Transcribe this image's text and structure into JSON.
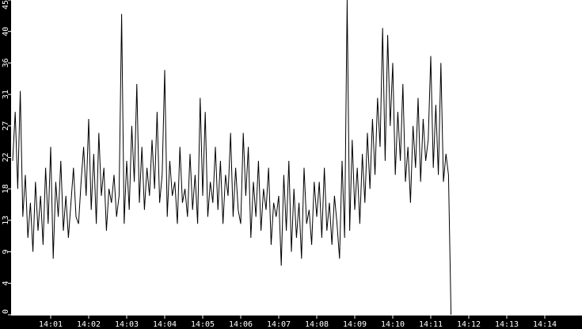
{
  "chart_data": {
    "type": "line",
    "title": "",
    "xlabel": "",
    "ylabel": "",
    "ylim": [
      0,
      45
    ],
    "xlim": [
      "14:00",
      "14:15"
    ],
    "y_ticks": [
      "0",
      "4",
      "9",
      "13",
      "18",
      "22",
      "27",
      "31",
      "36",
      "40",
      "45"
    ],
    "y_tick_values": [
      0,
      4.5,
      9,
      13.5,
      18,
      22.5,
      27,
      31.5,
      36,
      40.5,
      45
    ],
    "x_ticks": [
      "14:01",
      "14:02",
      "14:03",
      "14:04",
      "14:05",
      "14:06",
      "14:07",
      "14:08",
      "14:09",
      "14:10",
      "14:11",
      "14:12",
      "14:13",
      "14:14"
    ],
    "grid": false,
    "colors": {
      "line": "#000000",
      "axis_background": "#000000",
      "axis_text": "#ffffff",
      "plot_background": "#ffffff"
    },
    "samples_per_minute": 15,
    "series": [
      {
        "minutes": [
          {
            "minute": "14:00",
            "values": [
              22,
              29,
              18,
              32,
              14,
              20,
              11,
              16,
              9,
              19,
              12,
              17,
              10,
              21,
              13
            ]
          },
          {
            "minute": "14:01",
            "values": [
              24,
              8,
              19,
              14,
              22,
              12,
              17,
              11,
              16,
              21,
              14,
              13,
              19,
              24,
              17
            ]
          },
          {
            "minute": "14:02",
            "values": [
              28,
              15,
              23,
              13,
              26,
              17,
              21,
              12,
              18,
              16,
              20,
              14,
              17,
              43,
              13
            ]
          },
          {
            "minute": "14:03",
            "values": [
              22,
              15,
              27,
              19,
              33,
              16,
              24,
              15,
              21,
              17,
              25,
              18,
              29,
              16,
              20
            ]
          },
          {
            "minute": "14:04",
            "values": [
              35,
              14,
              22,
              17,
              19,
              13,
              24,
              16,
              18,
              14,
              23,
              15,
              20,
              13,
              31
            ]
          },
          {
            "minute": "14:05",
            "values": [
              17,
              29,
              14,
              19,
              16,
              24,
              15,
              22,
              13,
              20,
              17,
              26,
              14,
              21,
              15
            ]
          },
          {
            "minute": "14:06",
            "values": [
              13,
              26,
              17,
              24,
              11,
              19,
              14,
              22,
              12,
              18,
              15,
              21,
              10,
              16,
              14
            ]
          },
          {
            "minute": "14:07",
            "values": [
              17,
              7,
              20,
              12,
              22,
              9,
              18,
              11,
              16,
              8,
              21,
              13,
              15,
              10,
              19
            ]
          },
          {
            "minute": "14:08",
            "values": [
              14,
              19,
              11,
              21,
              12,
              16,
              10,
              17,
              13,
              8,
              22,
              11,
              45,
              12,
              25
            ]
          },
          {
            "minute": "14:09",
            "values": [
              15,
              21,
              13,
              23,
              16,
              26,
              18,
              28,
              20,
              31,
              24,
              41,
              22,
              40,
              27
            ]
          },
          {
            "minute": "14:10",
            "values": [
              36,
              20,
              29,
              22,
              33,
              19,
              24,
              16,
              27,
              21,
              31,
              19,
              28,
              22,
              25
            ]
          },
          {
            "minute": "14:11",
            "values": [
              37,
              21,
              30,
              20,
              36,
              19,
              23,
              20,
              0
            ]
          }
        ]
      }
    ]
  }
}
